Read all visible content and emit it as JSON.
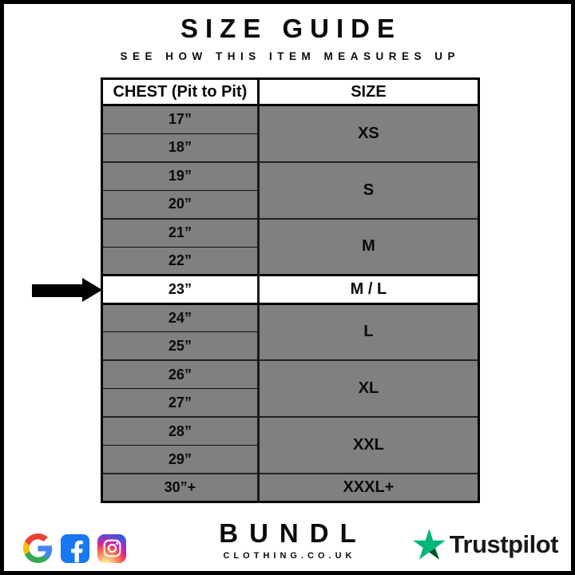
{
  "page": {
    "title": "SIZE GUIDE",
    "subtitle": "SEE HOW THIS ITEM MEASURES UP"
  },
  "table": {
    "headers": {
      "chest": "CHEST (Pit to Pit)",
      "size": "SIZE"
    },
    "groups": [
      {
        "size": "XS",
        "measurements": [
          "17”",
          "18”"
        ],
        "highlighted": false
      },
      {
        "size": "S",
        "measurements": [
          "19”",
          "20”"
        ],
        "highlighted": false
      },
      {
        "size": "M",
        "measurements": [
          "21”",
          "22”"
        ],
        "highlighted": false
      },
      {
        "size": "M / L",
        "measurements": [
          "23”"
        ],
        "highlighted": true
      },
      {
        "size": "L",
        "measurements": [
          "24”",
          "25”"
        ],
        "highlighted": false
      },
      {
        "size": "XL",
        "measurements": [
          "26”",
          "27”"
        ],
        "highlighted": false
      },
      {
        "size": "XXL",
        "measurements": [
          "28”",
          "29”"
        ],
        "highlighted": false
      },
      {
        "size": "XXXL+",
        "measurements": [
          "30”+"
        ],
        "highlighted": false
      }
    ],
    "highlighted_row": {
      "chest": "23”",
      "size": "M / L"
    }
  },
  "footer": {
    "social_icons": [
      "google-icon",
      "facebook-icon",
      "instagram-icon"
    ],
    "brand_name": "BUNDL",
    "brand_domain": "CLOTHING.CO.UK",
    "trustpilot_label": "Trustpilot"
  },
  "colors": {
    "row_gray": "#808080",
    "highlight_bg": "#FFFFFF",
    "facebook_blue": "#1877F2",
    "trustpilot_green": "#00B67A",
    "trustpilot_dark_green": "#005128",
    "google_blue": "#4285F4",
    "google_red": "#EA4335",
    "google_yellow": "#FBBC05",
    "google_green": "#34A853"
  }
}
